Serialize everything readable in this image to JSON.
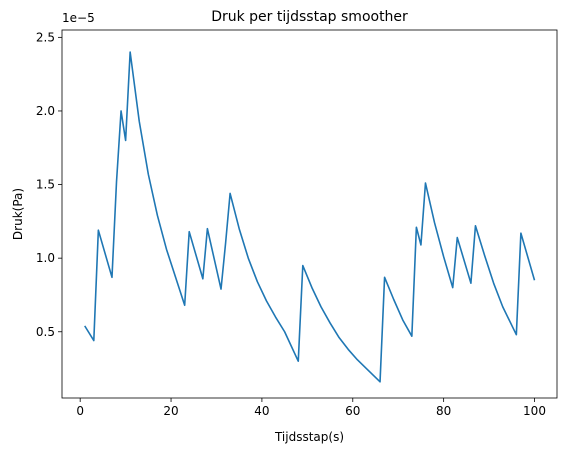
{
  "chart_data": {
    "type": "line",
    "title": "Druk per tijdsstap smoother",
    "xlabel": "Tijdsstap(s)",
    "ylabel": "Druk(Pa)",
    "y_exponent_label": "1e−5",
    "xlim": [
      -4.0,
      104.95
    ],
    "ylim": [
      0.05,
      2.55
    ],
    "xticks": [
      0,
      20,
      40,
      60,
      80,
      100
    ],
    "xtick_labels": [
      "0",
      "20",
      "40",
      "60",
      "80",
      "100"
    ],
    "yticks": [
      0.5,
      1.0,
      1.5,
      2.0,
      2.5
    ],
    "ytick_labels": [
      "0.5",
      "1.0",
      "1.5",
      "2.0",
      "2.5"
    ],
    "grid": false,
    "line_color": "#1f77b4",
    "series": [
      {
        "x": [
          1,
          3,
          4,
          7,
          8,
          9,
          10,
          11,
          13,
          15,
          17,
          19,
          21,
          23,
          24,
          27,
          28,
          31,
          32,
          33,
          35,
          37,
          39,
          41,
          43,
          45,
          48,
          49,
          51,
          53,
          55,
          57,
          59,
          61,
          63,
          66,
          67,
          69,
          71,
          73,
          74,
          75,
          76,
          78,
          80,
          82,
          83,
          86,
          87,
          89,
          91,
          93,
          96,
          97,
          100
        ],
        "y": [
          0.54,
          0.44,
          1.19,
          0.87,
          1.52,
          2.0,
          1.8,
          2.4,
          1.93,
          1.57,
          1.29,
          1.06,
          0.87,
          0.68,
          1.18,
          0.86,
          1.2,
          0.79,
          1.1,
          1.44,
          1.2,
          1.0,
          0.84,
          0.71,
          0.6,
          0.5,
          0.3,
          0.95,
          0.8,
          0.67,
          0.56,
          0.46,
          0.38,
          0.31,
          0.25,
          0.16,
          0.87,
          0.72,
          0.58,
          0.47,
          1.21,
          1.09,
          1.51,
          1.24,
          1.01,
          0.8,
          1.14,
          0.83,
          1.22,
          1.02,
          0.83,
          0.67,
          0.48,
          1.17,
          0.85
        ]
      }
    ]
  }
}
